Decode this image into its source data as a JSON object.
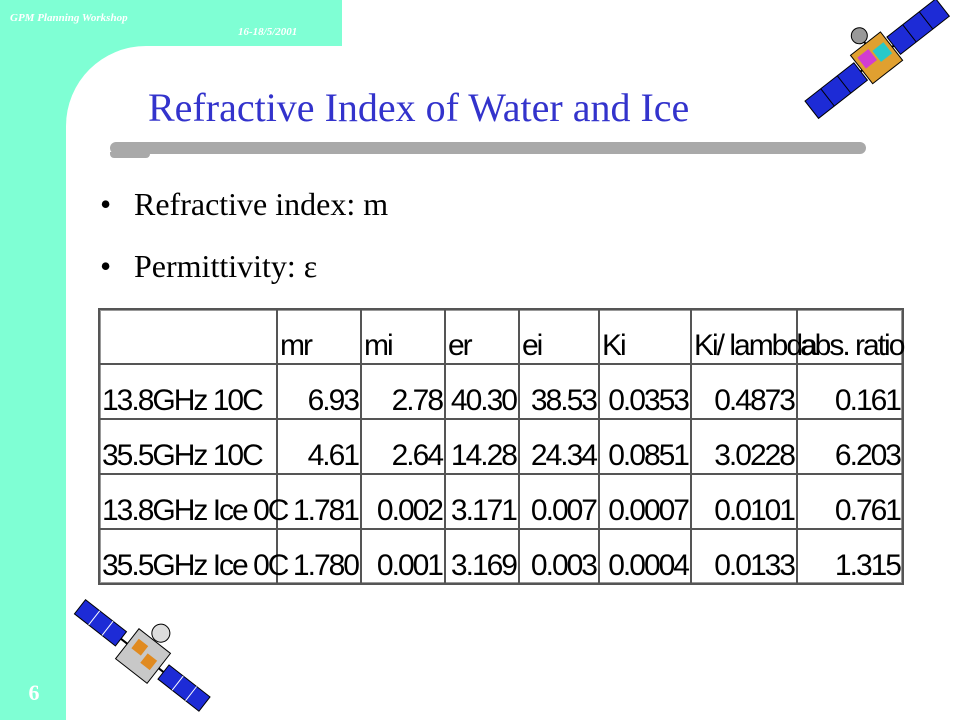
{
  "header": {
    "workshop": "GPM Planning Workshop",
    "date": "16-18/5/2001"
  },
  "slide": {
    "title": "Refractive Index of Water and Ice",
    "number": "6",
    "bullets": [
      "Refractive index: m",
      "Permittivity: ε"
    ]
  },
  "table": {
    "columns": [
      "",
      "mr",
      "mi",
      "er",
      "ei",
      "Ki",
      "Ki/ lambda",
      "abs. ratio"
    ],
    "rows": [
      [
        "13.8GHz 10C",
        "6.93",
        "2.78",
        "40.30",
        "38.53",
        "0.0353",
        "0.4873",
        "0.161"
      ],
      [
        "35.5GHz 10C",
        "4.61",
        "2.64",
        "14.28",
        "24.34",
        "0.0851",
        "3.0228",
        "6.203"
      ],
      [
        "13.8GHz Ice 0C",
        "1.781",
        "0.002",
        "3.171",
        "0.007",
        "0.0007",
        "0.0101",
        "0.761"
      ],
      [
        "35.5GHz Ice 0C",
        "1.780",
        "0.001",
        "3.169",
        "0.003",
        "0.0004",
        "0.0133",
        "1.315"
      ]
    ]
  },
  "colors": {
    "frame": "#7fffd4",
    "title": "#3333cc",
    "rule": "#a9a9a9"
  },
  "icons": [
    "satellite-icon-top",
    "satellite-icon-bottom"
  ]
}
